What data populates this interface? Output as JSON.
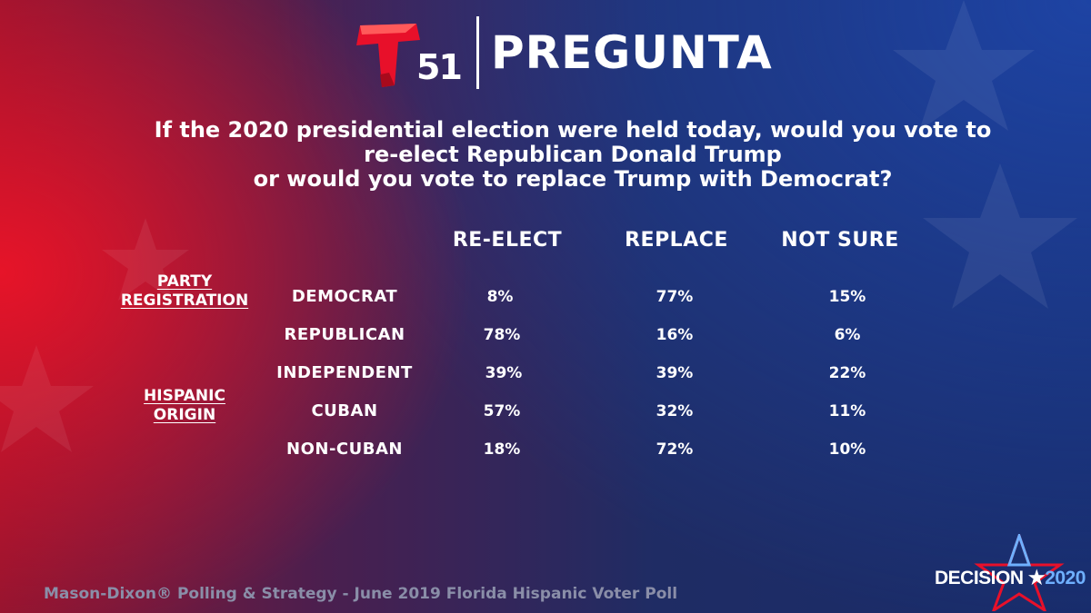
{
  "header": {
    "logo_number": "51",
    "title": "PREGUNTA"
  },
  "question": {
    "lines": [
      "If the 2020 presidential election were held today, would you vote to",
      "re-elect Republican Donald Trump",
      "or would you vote to replace Trump with Democrat?"
    ]
  },
  "chart_data": {
    "type": "table",
    "columns": [
      "RE-ELECT",
      "REPLACE",
      "NOT SURE"
    ],
    "groups": [
      {
        "label_lines": [
          "PARTY",
          "REGISTRATION"
        ]
      },
      {
        "label_lines": [
          "HISPANIC",
          "ORIGIN"
        ]
      }
    ],
    "rows": [
      {
        "label": "DEMOCRAT",
        "values": [
          "8%",
          "77%",
          "15%"
        ]
      },
      {
        "label": "REPUBLICAN",
        "values": [
          "78%",
          "16%",
          "6%"
        ]
      },
      {
        "label": "INDEPENDENT",
        "values": [
          "39%",
          "39%",
          "22%"
        ]
      },
      {
        "label": "CUBAN",
        "values": [
          "57%",
          "32%",
          "11%"
        ]
      },
      {
        "label": "NON-CUBAN",
        "values": [
          "18%",
          "72%",
          "10%"
        ]
      }
    ]
  },
  "footer": {
    "source": "Mason-Dixon® Polling & Strategy - June 2019 Florida Hispanic Voter Poll",
    "badge_word": "DECISION",
    "badge_year": "2020"
  },
  "colors": {
    "brand_red": "#e8102a",
    "accent_blue": "#6fb0ff",
    "source_gray": "#8a8ea8"
  }
}
